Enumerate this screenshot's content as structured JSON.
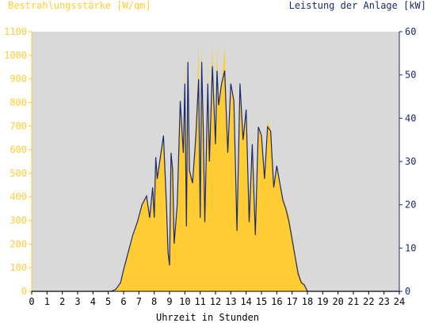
{
  "chart_data": {
    "type": "area",
    "title_left": "Bestrahlungsstärke [W/qm]",
    "title_right": "Leistung der Anlage [kW]",
    "xlabel": "Uhrzeit in Stunden",
    "xlim": [
      0,
      24
    ],
    "xticks": [
      "0",
      "1",
      "2",
      "3",
      "4",
      "5",
      "6",
      "7",
      "8",
      "9",
      "10",
      "11",
      "12",
      "13",
      "14",
      "15",
      "16",
      "17",
      "18",
      "19",
      "20",
      "21",
      "22",
      "23",
      "24"
    ],
    "y_left_lim": [
      0,
      1100
    ],
    "y_left_ticks": [
      "0",
      "100",
      "200",
      "300",
      "400",
      "500",
      "600",
      "700",
      "800",
      "900",
      "1000",
      "1100"
    ],
    "y_right_lim": [
      0,
      60
    ],
    "y_right_ticks": [
      "0",
      "10",
      "20",
      "30",
      "40",
      "50",
      "60"
    ],
    "grid": false,
    "colors": {
      "irradiance_fill": "#ffcc33",
      "power_line": "#1a2a6c",
      "plot_bg": "#d9d9d9",
      "left_axis_text": "#ffcc33",
      "right_axis_text": "#1a2a6c",
      "x_axis_text": "#000000"
    },
    "series": [
      {
        "axis": "left",
        "x": [
          0,
          5.2,
          5.5,
          5.8,
          6.0,
          6.3,
          6.6,
          6.9,
          7.2,
          7.5,
          7.7,
          7.9,
          8.0,
          8.1,
          8.2,
          8.4,
          8.6,
          8.8,
          8.9,
          9.0,
          9.1,
          9.2,
          9.3,
          9.5,
          9.7,
          9.9,
          10.0,
          10.1,
          10.2,
          10.3,
          10.5,
          10.7,
          10.9,
          11.0,
          11.1,
          11.2,
          11.3,
          11.5,
          11.6,
          11.8,
          12.0,
          12.1,
          12.2,
          12.4,
          12.6,
          12.8,
          13.0,
          13.2,
          13.4,
          13.6,
          13.8,
          14.0,
          14.2,
          14.4,
          14.6,
          14.8,
          15.0,
          15.2,
          15.4,
          15.6,
          15.8,
          16.0,
          16.2,
          16.4,
          16.6,
          16.8,
          17.0,
          17.2,
          17.4,
          17.6,
          17.8,
          18.0,
          18.3,
          18.6,
          19.0,
          19.5,
          20.0,
          24
        ],
        "y": [
          0,
          0,
          10,
          40,
          90,
          160,
          230,
          300,
          370,
          400,
          330,
          450,
          340,
          570,
          480,
          580,
          640,
          380,
          180,
          120,
          600,
          520,
          220,
          380,
          800,
          600,
          980,
          300,
          1020,
          520,
          460,
          640,
          1040,
          350,
          1060,
          700,
          300,
          980,
          560,
          1050,
          620,
          1040,
          780,
          880,
          1040,
          600,
          860,
          790,
          270,
          890,
          640,
          770,
          310,
          620,
          250,
          700,
          650,
          490,
          720,
          690,
          440,
          540,
          460,
          400,
          360,
          320,
          240,
          160,
          90,
          50,
          30,
          0,
          0,
          0,
          0,
          0,
          0,
          0
        ]
      },
      {
        "axis": "right",
        "x": [
          0,
          5.2,
          5.5,
          5.8,
          6.0,
          6.3,
          6.6,
          6.9,
          7.2,
          7.5,
          7.7,
          7.9,
          8.0,
          8.1,
          8.2,
          8.4,
          8.6,
          8.8,
          8.9,
          9.0,
          9.1,
          9.2,
          9.3,
          9.5,
          9.7,
          9.9,
          10.0,
          10.1,
          10.2,
          10.3,
          10.5,
          10.7,
          10.9,
          11.0,
          11.1,
          11.2,
          11.3,
          11.5,
          11.6,
          11.8,
          12.0,
          12.1,
          12.2,
          12.4,
          12.6,
          12.8,
          13.0,
          13.2,
          13.4,
          13.6,
          13.8,
          14.0,
          14.2,
          14.4,
          14.6,
          14.8,
          15.0,
          15.2,
          15.4,
          15.6,
          15.8,
          16.0,
          16.2,
          16.4,
          16.6,
          16.8,
          17.0,
          17.2,
          17.4,
          17.6,
          17.8,
          18.0,
          18.3,
          18.6,
          19.0,
          19.5,
          20.0,
          24
        ],
        "y": [
          0,
          0,
          0.5,
          2,
          5,
          9,
          13,
          16,
          20,
          22,
          17,
          24,
          17,
          31,
          26,
          31,
          36,
          20,
          9,
          6,
          32,
          28,
          11,
          20,
          44,
          32,
          48,
          15,
          53,
          28,
          25,
          35,
          49,
          17,
          53,
          38,
          16,
          48,
          30,
          52,
          34,
          51,
          43,
          48,
          51,
          32,
          48,
          44,
          14,
          48,
          35,
          42,
          16,
          34,
          13,
          38,
          36,
          26,
          38,
          37,
          24,
          29,
          25,
          21,
          19,
          16,
          12,
          8,
          4,
          2,
          1.5,
          0,
          0,
          0,
          0,
          0,
          0,
          0
        ]
      }
    ]
  }
}
